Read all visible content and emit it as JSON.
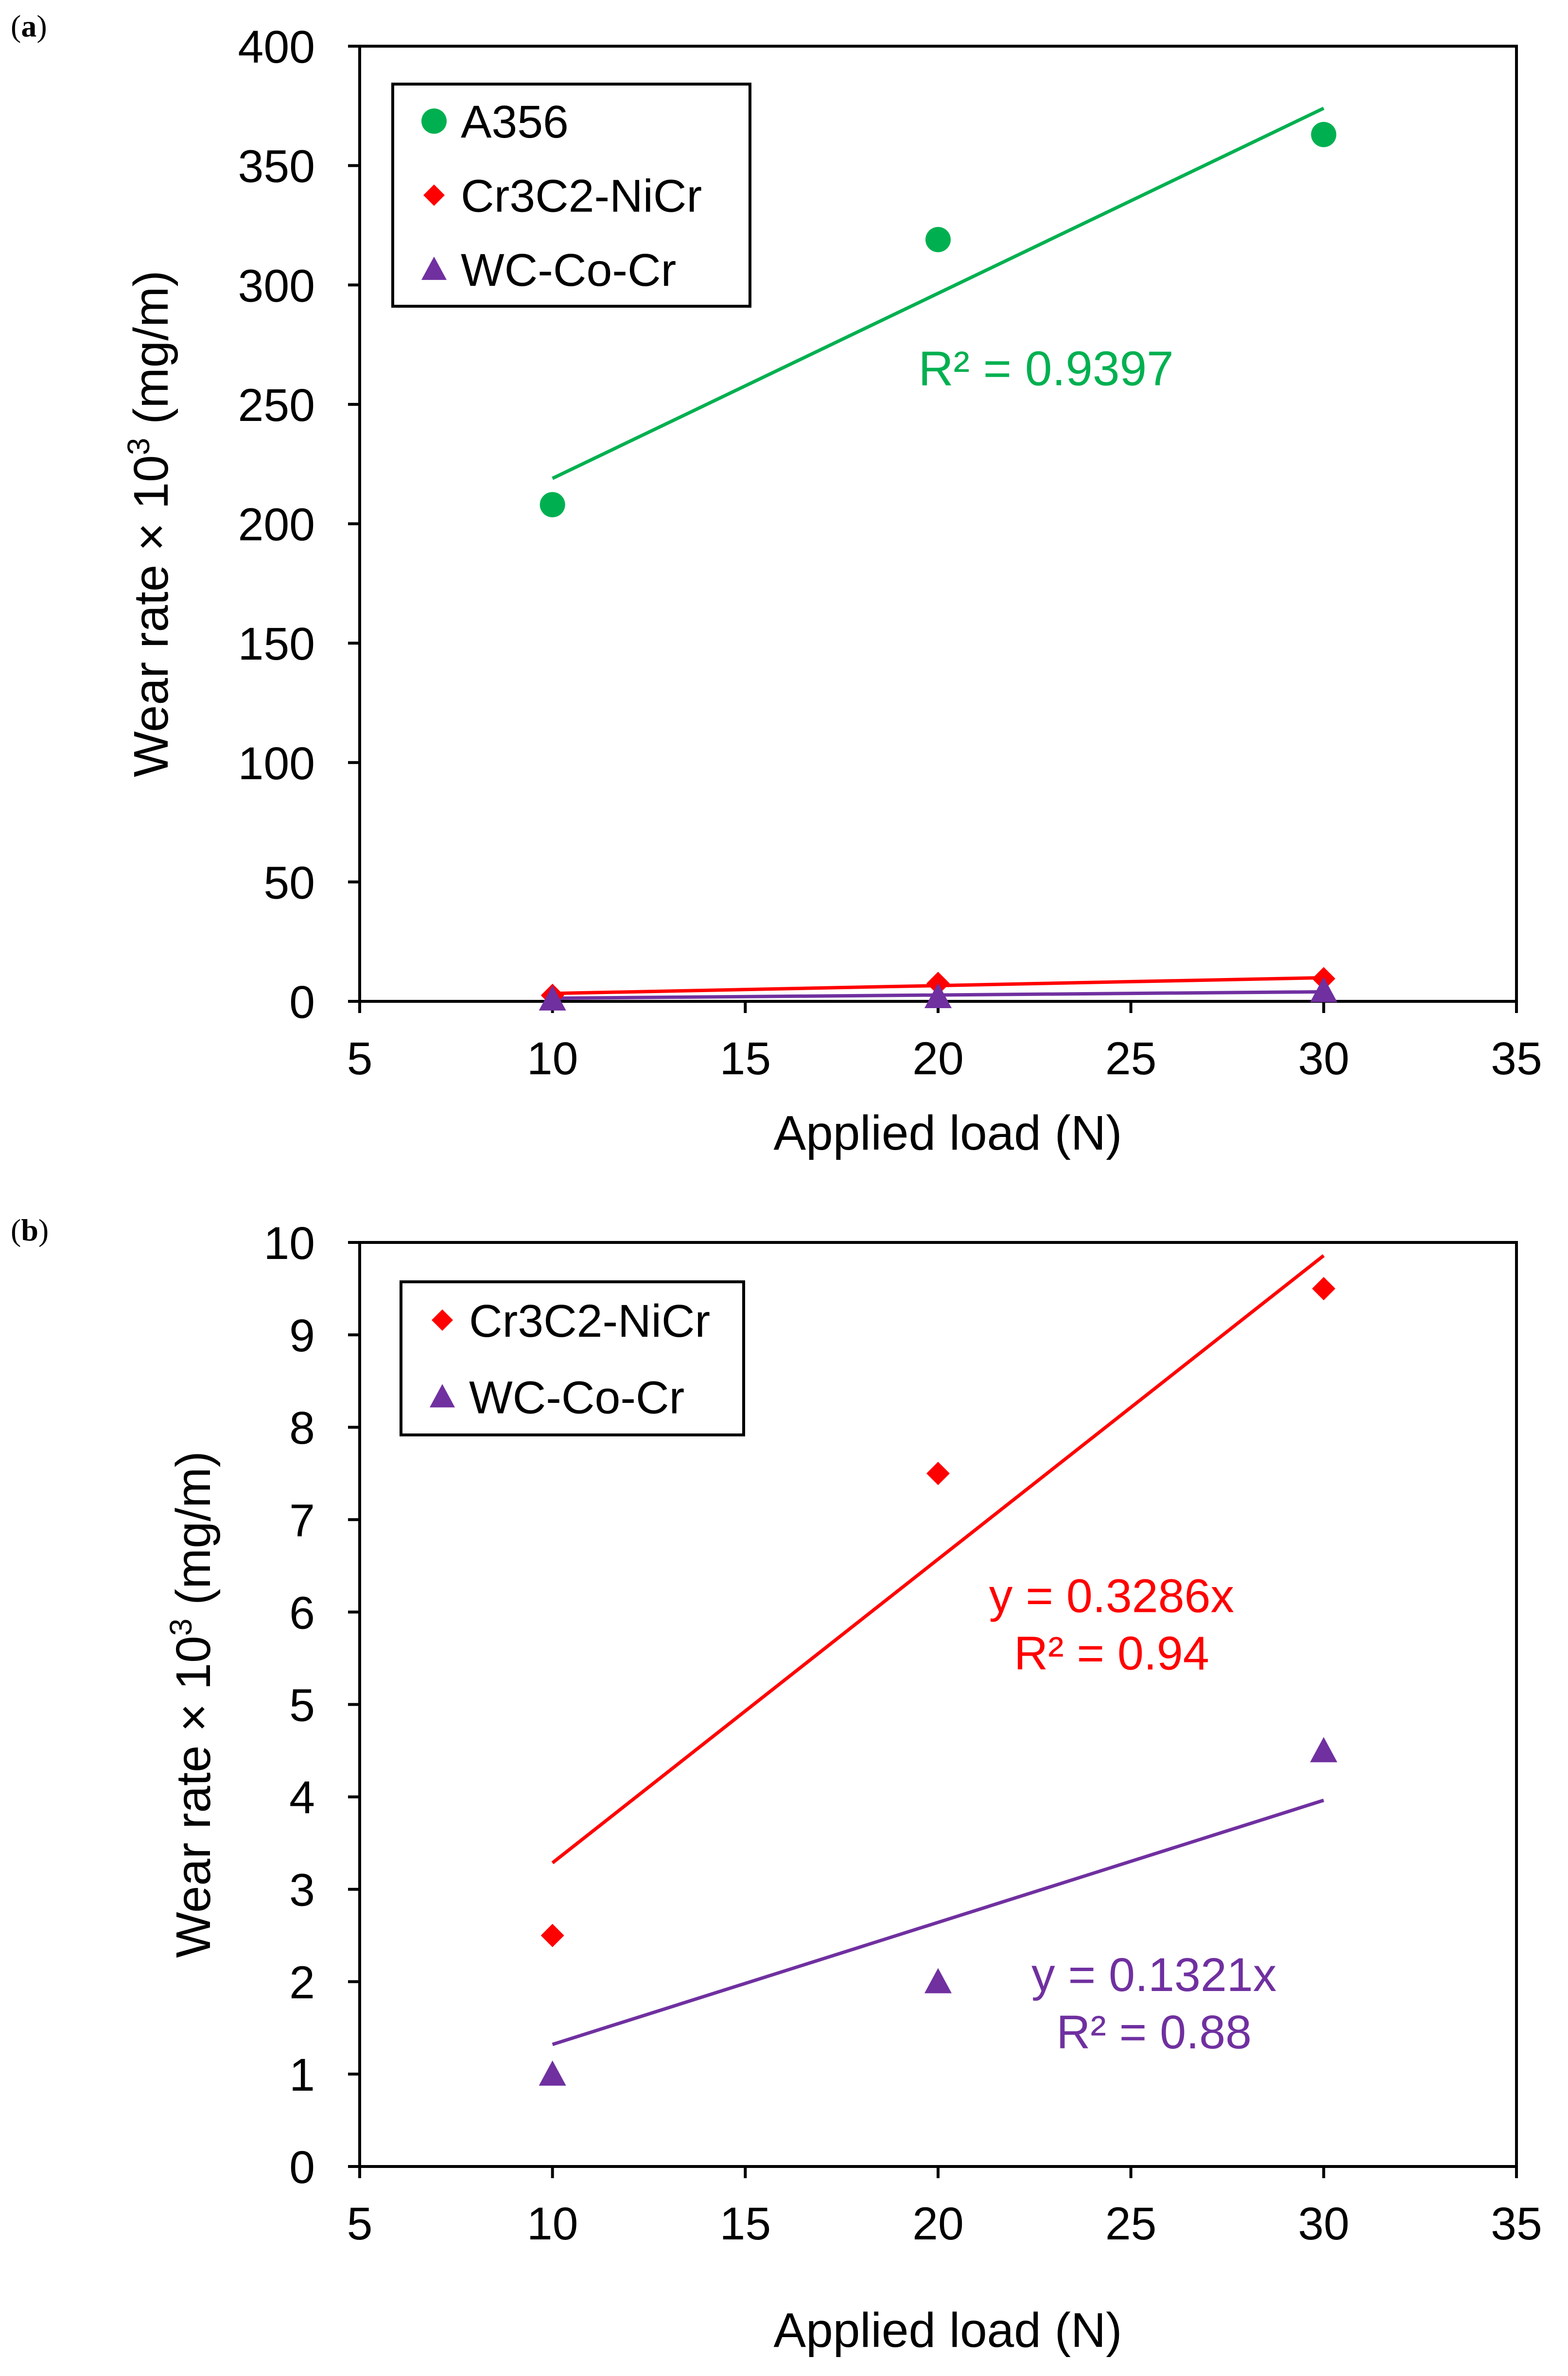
{
  "figure": {
    "colors": {
      "green": "#00b050",
      "red": "#ff0000",
      "purple": "#7030a0",
      "axis": "#000000"
    }
  },
  "chart_data": [
    {
      "type": "scatter",
      "panel": {
        "label": "(a)",
        "label_parts": {
          "open": "(",
          "letter": "a",
          "close": ")"
        }
      },
      "xlabel": "Applied load (N)",
      "ylabel": "Wear rate × 10",
      "ylabel_sup": "3",
      "ylabel_unit": " (mg/m)",
      "xlim": [
        5,
        35
      ],
      "ylim": [
        0,
        400
      ],
      "xticks": [
        5,
        10,
        15,
        20,
        25,
        30,
        35
      ],
      "yticks": [
        0,
        50,
        100,
        150,
        200,
        250,
        300,
        350,
        400
      ],
      "grid": false,
      "legend": {
        "position": "top-left",
        "entries": [
          "A356",
          "Cr3C2-NiCr",
          "WC-Co-Cr"
        ]
      },
      "series": [
        {
          "name": "A356",
          "marker": "circle",
          "color": "#00b050",
          "x": [
            10,
            20,
            30
          ],
          "y": [
            208,
            319,
            363
          ],
          "trendline": {
            "x": [
              10,
              30
            ],
            "y": [
              219,
              374
            ]
          }
        },
        {
          "name": "Cr3C2-NiCr",
          "marker": "diamond",
          "color": "#ff0000",
          "x": [
            10,
            20,
            30
          ],
          "y": [
            2.5,
            7.5,
            9.5
          ],
          "trendline": {
            "x": [
              10,
              30
            ],
            "y": [
              3.3,
              9.9
            ]
          }
        },
        {
          "name": "WC-Co-Cr",
          "marker": "triangle",
          "color": "#7030a0",
          "x": [
            10,
            20,
            30
          ],
          "y": [
            1,
            2,
            4.5
          ],
          "trendline": {
            "x": [
              10,
              30
            ],
            "y": [
              1.3,
              4.0
            ]
          }
        }
      ],
      "annotations": [
        {
          "lines": [
            "R² = 0.9397"
          ],
          "color": "#00b050",
          "x": 22.8,
          "y": 258
        }
      ]
    },
    {
      "type": "scatter",
      "panel": {
        "label": "(b)",
        "label_parts": {
          "open": "(",
          "letter": "b",
          "close": ")"
        }
      },
      "xlabel": "Applied load (N)",
      "ylabel": "Wear rate × 10",
      "ylabel_sup": "3",
      "ylabel_unit": " (mg/m)",
      "xlim": [
        5,
        35
      ],
      "ylim": [
        0,
        10
      ],
      "xticks": [
        5,
        10,
        15,
        20,
        25,
        30,
        35
      ],
      "yticks": [
        0,
        1,
        2,
        3,
        4,
        5,
        6,
        7,
        8,
        9,
        10
      ],
      "grid": false,
      "legend": {
        "position": "top-left",
        "entries": [
          "Cr3C2-NiCr",
          "WC-Co-Cr"
        ]
      },
      "series": [
        {
          "name": "Cr3C2-NiCr",
          "marker": "diamond",
          "color": "#ff0000",
          "x": [
            10,
            20,
            30
          ],
          "y": [
            2.5,
            7.5,
            9.5
          ],
          "trendline": {
            "x": [
              10,
              30
            ],
            "y": [
              3.286,
              9.858
            ]
          }
        },
        {
          "name": "WC-Co-Cr",
          "marker": "triangle",
          "color": "#7030a0",
          "x": [
            10,
            20,
            30
          ],
          "y": [
            1,
            2,
            4.5
          ],
          "trendline": {
            "x": [
              10,
              30
            ],
            "y": [
              1.321,
              3.963
            ]
          }
        }
      ],
      "annotations": [
        {
          "lines": [
            "y = 0.3286x",
            "R² = 0.94"
          ],
          "color": "#ff0000",
          "x": 24.5,
          "y": 6.0
        },
        {
          "lines": [
            "y = 0.1321x",
            "R² = 0.88"
          ],
          "color": "#7030a0",
          "x": 25.6,
          "y": 1.9
        }
      ]
    }
  ]
}
